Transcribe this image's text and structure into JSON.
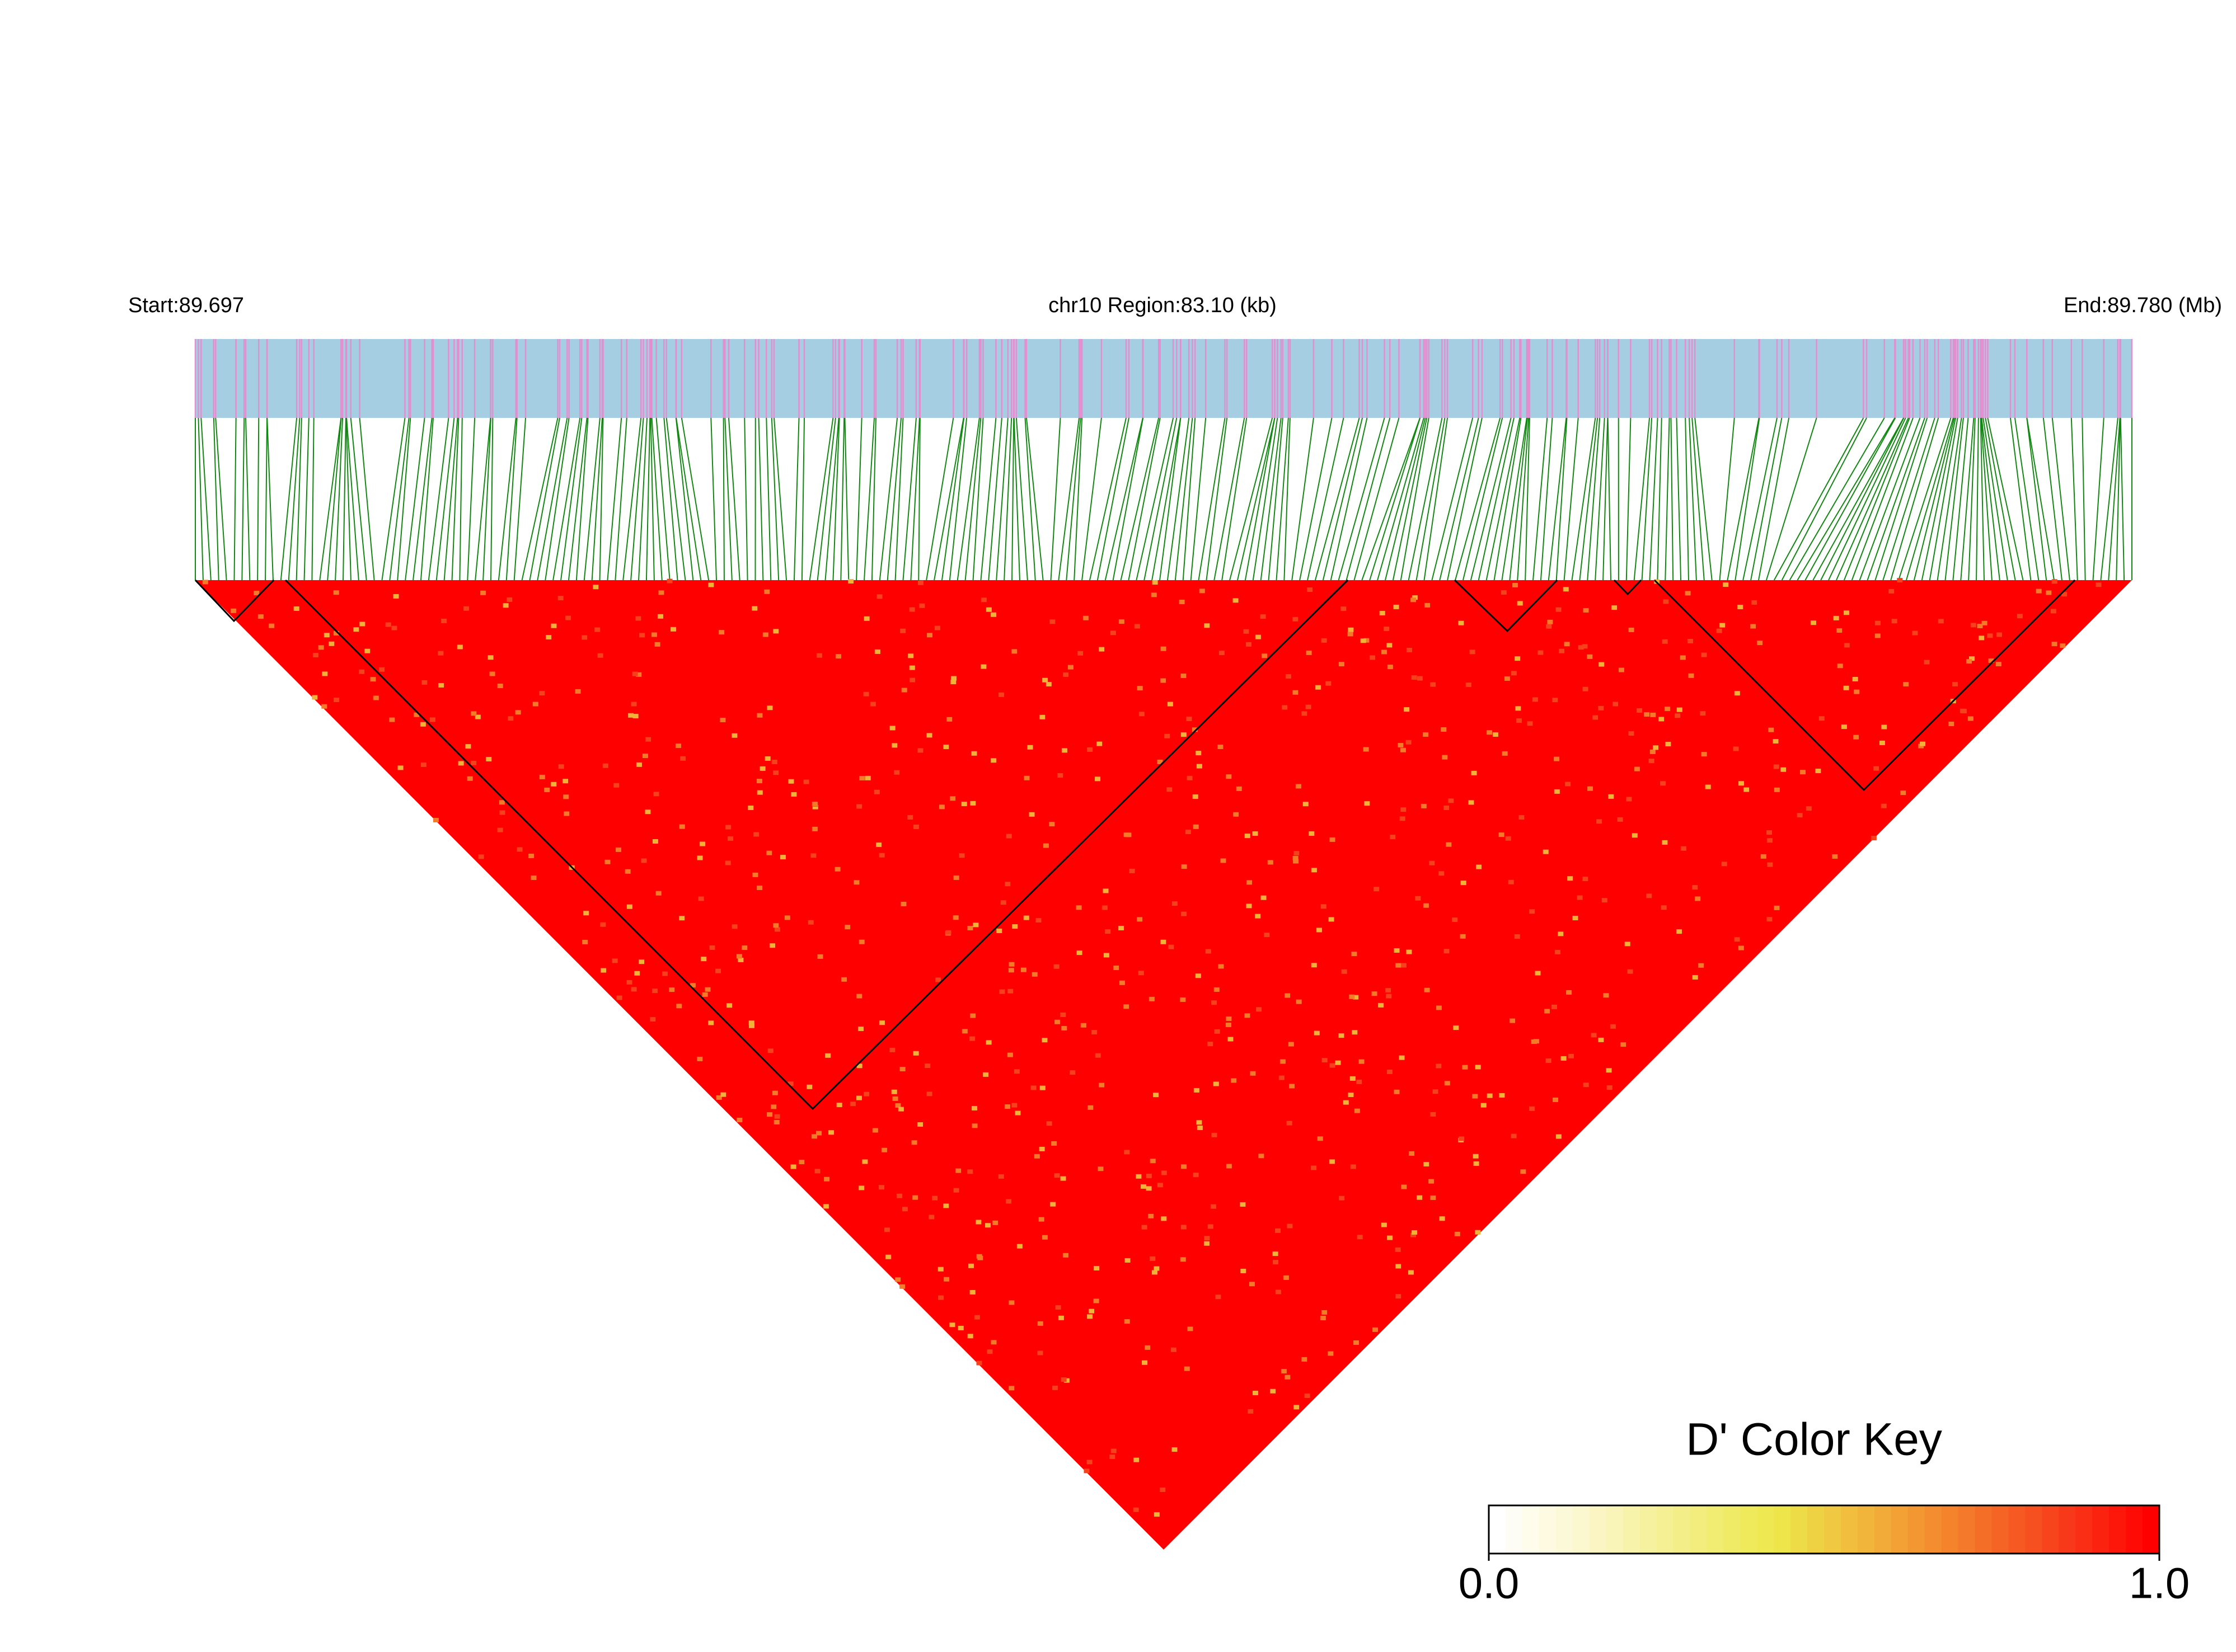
{
  "chart_data": {
    "type": "heatmap",
    "start_label": "Start:89.697",
    "region_label": "chr10 Region:83.10 (kb)",
    "end_label": "End:89.780 (Mb)",
    "color_key_title": "D' Color Key",
    "clim": [
      0,
      1
    ],
    "cticks": [
      {
        "value": 0,
        "label": "0.0"
      },
      {
        "value": 1,
        "label": "1.0"
      }
    ],
    "colormap": [
      "#ffffff",
      "#fbf6c8",
      "#f3ee86",
      "#ede84a",
      "#f2b23a",
      "#f47a2a",
      "#f7401c",
      "#ff0000"
    ]
  }
}
